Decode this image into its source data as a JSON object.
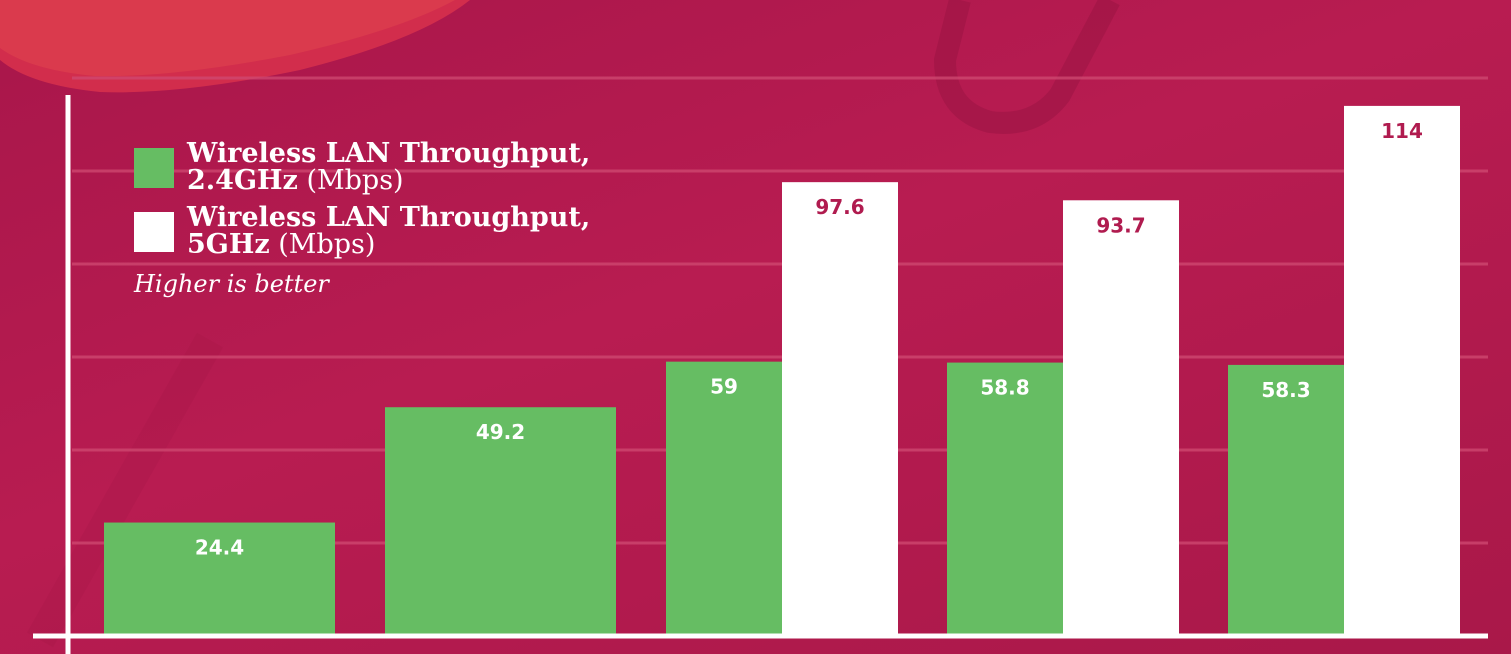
{
  "chart_data": {
    "type": "bar",
    "categories": [
      "",
      "",
      "",
      "",
      ""
    ],
    "series": [
      {
        "name": "Wireless LAN Throughput, 2.4GHz (Mbps)",
        "color": "#66bd63",
        "values": [
          24.4,
          49.2,
          59,
          58.8,
          58.3
        ],
        "labels": [
          "24.4",
          "49.2",
          "59",
          "58.8",
          "58.3"
        ]
      },
      {
        "name": "Wireless LAN Throughput, 5GHz (Mbps)",
        "color": "#ffffff",
        "values": [
          null,
          null,
          97.6,
          93.7,
          114
        ],
        "labels": [
          "",
          "",
          "97.6",
          "93.7",
          "114"
        ]
      }
    ],
    "ylim": [
      0,
      120
    ],
    "grid": true,
    "legend_position": "top-left"
  },
  "legend": {
    "items": [
      {
        "bold": "Wireless LAN Throughput, 2.4GHz",
        "rest": " (Mbps)",
        "color": "#66bd63"
      },
      {
        "bold": "Wireless LAN Throughput, 5GHz",
        "rest": " (Mbps)",
        "color": "#ffffff"
      }
    ],
    "note": "Higher is better"
  },
  "colors": {
    "background": "#b81c51",
    "gridline": "#d04a72",
    "axis": "#ffffff",
    "label_on_green": "#ffffff",
    "label_on_white": "#b01b4f"
  }
}
